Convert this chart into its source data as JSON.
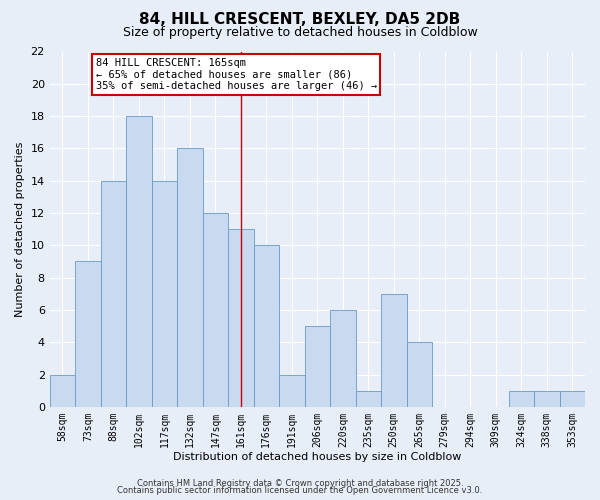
{
  "title": "84, HILL CRESCENT, BEXLEY, DA5 2DB",
  "subtitle": "Size of property relative to detached houses in Coldblow",
  "xlabel": "Distribution of detached houses by size in Coldblow",
  "ylabel": "Number of detached properties",
  "bin_labels": [
    "58sqm",
    "73sqm",
    "88sqm",
    "102sqm",
    "117sqm",
    "132sqm",
    "147sqm",
    "161sqm",
    "176sqm",
    "191sqm",
    "206sqm",
    "220sqm",
    "235sqm",
    "250sqm",
    "265sqm",
    "279sqm",
    "294sqm",
    "309sqm",
    "324sqm",
    "338sqm",
    "353sqm"
  ],
  "bar_values": [
    2,
    9,
    14,
    18,
    14,
    16,
    12,
    11,
    10,
    2,
    5,
    6,
    1,
    7,
    4,
    0,
    0,
    0,
    1,
    1,
    1
  ],
  "bar_color": "#c8d9f0",
  "bar_edge_color": "#6699cc",
  "vline_x_idx": 7,
  "vline_color": "#cc0000",
  "annotation_title": "84 HILL CRESCENT: 165sqm",
  "annotation_line1": "← 65% of detached houses are smaller (86)",
  "annotation_line2": "35% of semi-detached houses are larger (46) →",
  "annotation_box_color": "#ffffff",
  "annotation_border_color": "#cc0000",
  "ylim": [
    0,
    22
  ],
  "yticks": [
    0,
    2,
    4,
    6,
    8,
    10,
    12,
    14,
    16,
    18,
    20,
    22
  ],
  "background_color": "#e8eef8",
  "grid_color": "#ffffff",
  "title_fontsize": 11,
  "subtitle_fontsize": 9,
  "axis_label_fontsize": 8,
  "tick_fontsize": 7,
  "footer1": "Contains HM Land Registry data © Crown copyright and database right 2025.",
  "footer2": "Contains public sector information licensed under the Open Government Licence v3.0."
}
